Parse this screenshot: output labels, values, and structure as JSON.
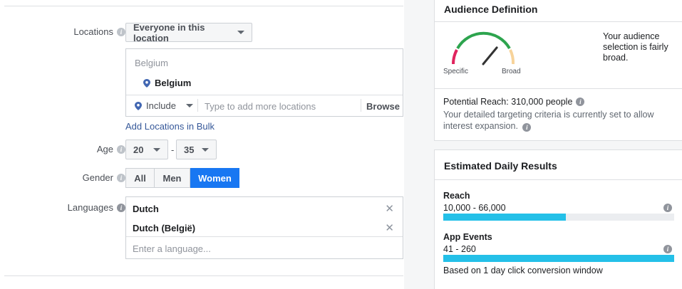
{
  "form": {
    "locations_label": "Locations",
    "location_mode": "Everyone in this location",
    "location_group_header": "Belgium",
    "selected_location": "Belgium",
    "include_label": "Include",
    "location_placeholder": "Type to add more locations",
    "browse_label": "Browse",
    "bulk_link": "Add Locations in Bulk",
    "age_label": "Age",
    "age_min": "20",
    "age_separator": "-",
    "age_max": "35",
    "gender_label": "Gender",
    "gender_options": [
      "All",
      "Men",
      "Women"
    ],
    "gender_selected": "Women",
    "languages_label": "Languages",
    "languages": [
      "Dutch",
      "Dutch (België)"
    ],
    "language_placeholder": "Enter a language..."
  },
  "audience": {
    "title": "Audience Definition",
    "gauge_left": "Specific",
    "gauge_right": "Broad",
    "gauge_level": 0.72,
    "summary": "Your audience selection is fairly broad.",
    "reach_text": "Potential Reach: 310,000 people",
    "note": "Your detailed targeting criteria is currently set to allow interest expansion."
  },
  "estimated": {
    "title": "Estimated Daily Results",
    "reach_label": "Reach",
    "reach_range": "10,000 - 66,000",
    "reach_fill": 0.53,
    "events_label": "App Events",
    "events_range": "41 - 260",
    "events_fill": 1.0,
    "window_note": "Based on 1 day click conversion window"
  },
  "colors": {
    "accent": "#1877f2",
    "bar_fill": "#24c0e8",
    "gauge_red": "#e0245e",
    "gauge_green": "#2da44e",
    "gauge_yellow": "#f7d39a"
  }
}
